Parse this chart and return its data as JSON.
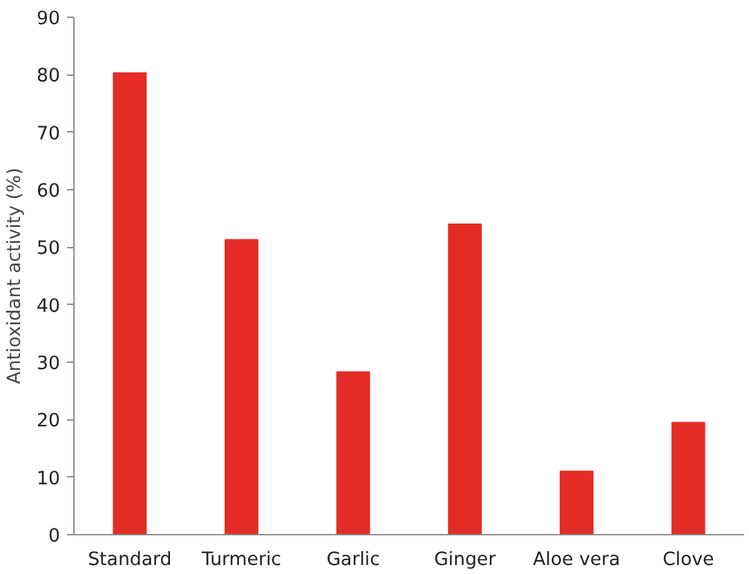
{
  "chart_data": {
    "type": "bar",
    "ylabel": "Antioxidant activity (%)",
    "categories": [
      "Standard",
      "Turmeric",
      "Garlic",
      "Ginger",
      "Aloe vera",
      "Clove"
    ],
    "values": [
      80.3,
      51.3,
      28.3,
      54.0,
      11.0,
      19.5
    ],
    "color": "#e32c26",
    "ylim": [
      0,
      90
    ],
    "yticks": [
      0,
      10,
      20,
      30,
      40,
      50,
      60,
      70,
      80,
      90
    ],
    "grid": false
  }
}
